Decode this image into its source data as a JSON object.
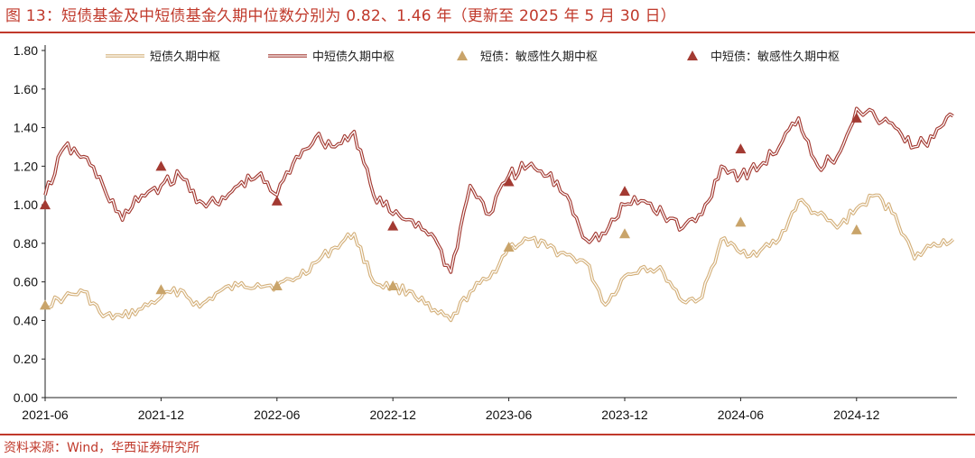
{
  "header": {
    "title": "图 13：短债基金及中短债基金久期中位数分别为 0.82、1.46 年（更新至 2025 年 5 月 30 日）"
  },
  "footer": {
    "source": "资料来源：Wind，华西证券研究所"
  },
  "colors": {
    "accent": "#c0392b",
    "short_line": "#d4b07a",
    "mid_line": "#a33a32",
    "short_marker": "#c9a46a",
    "mid_marker": "#a33a32"
  },
  "chart_data": {
    "type": "line",
    "title": "",
    "xlabel": "",
    "ylabel": "",
    "ylim": [
      0,
      1.8
    ],
    "yticks": [
      "0.00",
      "0.20",
      "0.40",
      "0.60",
      "0.80",
      "1.00",
      "1.20",
      "1.40",
      "1.60",
      "1.80"
    ],
    "xlim": [
      "2021-06",
      "2025-05"
    ],
    "xticks": [
      "2021-06",
      "2021-12",
      "2022-06",
      "2022-12",
      "2023-06",
      "2023-12",
      "2024-06",
      "2024-12"
    ],
    "grid": false,
    "legend_position": "top",
    "series": [
      {
        "name": "短债久期中枢",
        "kind": "line",
        "x": [
          "2021-06",
          "2021-07",
          "2021-08",
          "2021-09",
          "2021-10",
          "2021-11",
          "2021-12",
          "2022-01",
          "2022-02",
          "2022-03",
          "2022-04",
          "2022-05",
          "2022-06",
          "2022-07",
          "2022-08",
          "2022-09",
          "2022-10",
          "2022-11",
          "2022-12",
          "2023-01",
          "2023-02",
          "2023-03",
          "2023-04",
          "2023-05",
          "2023-06",
          "2023-07",
          "2023-08",
          "2023-09",
          "2023-10",
          "2023-11",
          "2023-12",
          "2024-01",
          "2024-02",
          "2024-03",
          "2024-04",
          "2024-05",
          "2024-06",
          "2024-07",
          "2024-08",
          "2024-09",
          "2024-10",
          "2024-11",
          "2024-12",
          "2025-01",
          "2025-02",
          "2025-03",
          "2025-04",
          "2025-05"
        ],
        "values": [
          0.48,
          0.52,
          0.55,
          0.42,
          0.42,
          0.46,
          0.52,
          0.56,
          0.47,
          0.55,
          0.58,
          0.59,
          0.58,
          0.62,
          0.7,
          0.78,
          0.85,
          0.6,
          0.57,
          0.55,
          0.45,
          0.4,
          0.55,
          0.62,
          0.78,
          0.82,
          0.78,
          0.74,
          0.7,
          0.48,
          0.63,
          0.68,
          0.65,
          0.5,
          0.52,
          0.82,
          0.75,
          0.76,
          0.82,
          1.02,
          0.95,
          0.88,
          0.98,
          1.05,
          0.95,
          0.72,
          0.8,
          0.82
        ]
      },
      {
        "name": "中短债久期中枢",
        "kind": "line",
        "x": [
          "2021-06",
          "2021-07",
          "2021-08",
          "2021-09",
          "2021-10",
          "2021-11",
          "2021-12",
          "2022-01",
          "2022-02",
          "2022-03",
          "2022-04",
          "2022-05",
          "2022-06",
          "2022-07",
          "2022-08",
          "2022-09",
          "2022-10",
          "2022-11",
          "2022-12",
          "2023-01",
          "2023-02",
          "2023-03",
          "2023-04",
          "2023-05",
          "2023-06",
          "2023-07",
          "2023-08",
          "2023-09",
          "2023-10",
          "2023-11",
          "2023-12",
          "2024-01",
          "2024-02",
          "2024-03",
          "2024-04",
          "2024-05",
          "2024-06",
          "2024-07",
          "2024-08",
          "2024-09",
          "2024-10",
          "2024-11",
          "2024-12",
          "2025-01",
          "2025-02",
          "2025-03",
          "2025-04",
          "2025-05"
        ],
        "values": [
          1.05,
          1.3,
          1.25,
          1.1,
          0.92,
          1.05,
          1.1,
          1.15,
          1.02,
          1.0,
          1.1,
          1.15,
          1.05,
          1.25,
          1.35,
          1.3,
          1.38,
          1.05,
          0.95,
          0.92,
          0.85,
          0.65,
          1.1,
          0.95,
          1.15,
          1.2,
          1.15,
          1.05,
          0.82,
          0.85,
          1.0,
          1.02,
          0.95,
          0.88,
          0.95,
          1.2,
          1.15,
          1.2,
          1.3,
          1.45,
          1.2,
          1.25,
          1.5,
          1.45,
          1.4,
          1.3,
          1.35,
          1.46
        ]
      },
      {
        "name": "短债：敏感性久期中枢",
        "kind": "marker",
        "x": [
          "2021-06",
          "2021-12",
          "2022-06",
          "2022-12",
          "2023-06",
          "2023-12",
          "2024-06",
          "2024-12"
        ],
        "values": [
          0.48,
          0.56,
          0.58,
          0.58,
          0.78,
          0.85,
          0.91,
          0.87
        ]
      },
      {
        "name": "中短债：敏感性久期中枢",
        "kind": "marker",
        "x": [
          "2021-06",
          "2021-12",
          "2022-06",
          "2022-12",
          "2023-06",
          "2023-12",
          "2024-06",
          "2024-12"
        ],
        "values": [
          1.0,
          1.2,
          1.02,
          0.89,
          1.12,
          1.07,
          1.29,
          1.45
        ]
      }
    ]
  }
}
